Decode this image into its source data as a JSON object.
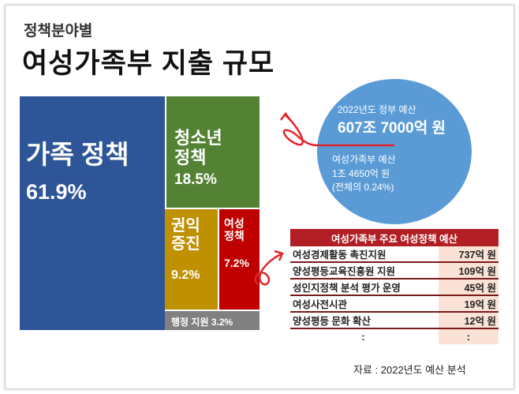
{
  "subtitle": "정책분야별",
  "title": "여성가족부 지출 규모",
  "chart_data": {
    "type": "treemap",
    "title": "여성가족부 지출 규모",
    "items": [
      {
        "name": "가족 정책",
        "value": 61.9,
        "label": "61.9%",
        "color": "#2e5597"
      },
      {
        "name": "청소년\n정책",
        "value": 18.5,
        "label": "18.5%",
        "color": "#548235"
      },
      {
        "name": "권익\n증진",
        "value": 9.2,
        "label": "9.2%",
        "color": "#bf9000"
      },
      {
        "name": "여성\n정책",
        "value": 7.2,
        "label": "7.2%",
        "color": "#c00000"
      },
      {
        "name": "행정 지원",
        "value": 3.2,
        "label": "3.2%",
        "color": "#808080"
      }
    ]
  },
  "circle": {
    "gov_label": "2022년도 정부 예산",
    "gov_value": "607조 7000억 원",
    "mogef_label": "여성가족부 예산",
    "mogef_value": "1조 4650억 원",
    "share": "(전체의 0.24%)"
  },
  "table": {
    "header": "여성가족부 주요 여성정책 예산",
    "rows": [
      {
        "name": "여성경제활동 촉진지원",
        "value": "737억 원"
      },
      {
        "name": "양성평등교육진흥원 지원",
        "value": "109억 원"
      },
      {
        "name": "성인지정책 분석 평가 운영",
        "value": "45억 원"
      },
      {
        "name": "여성사전시관",
        "value": "19억 원"
      },
      {
        "name": "양성평등 문화 확산",
        "value": "12억 원"
      },
      {
        "name": ":",
        "value": ":"
      }
    ]
  },
  "source": "자료 : 2022년도 예산 분석"
}
